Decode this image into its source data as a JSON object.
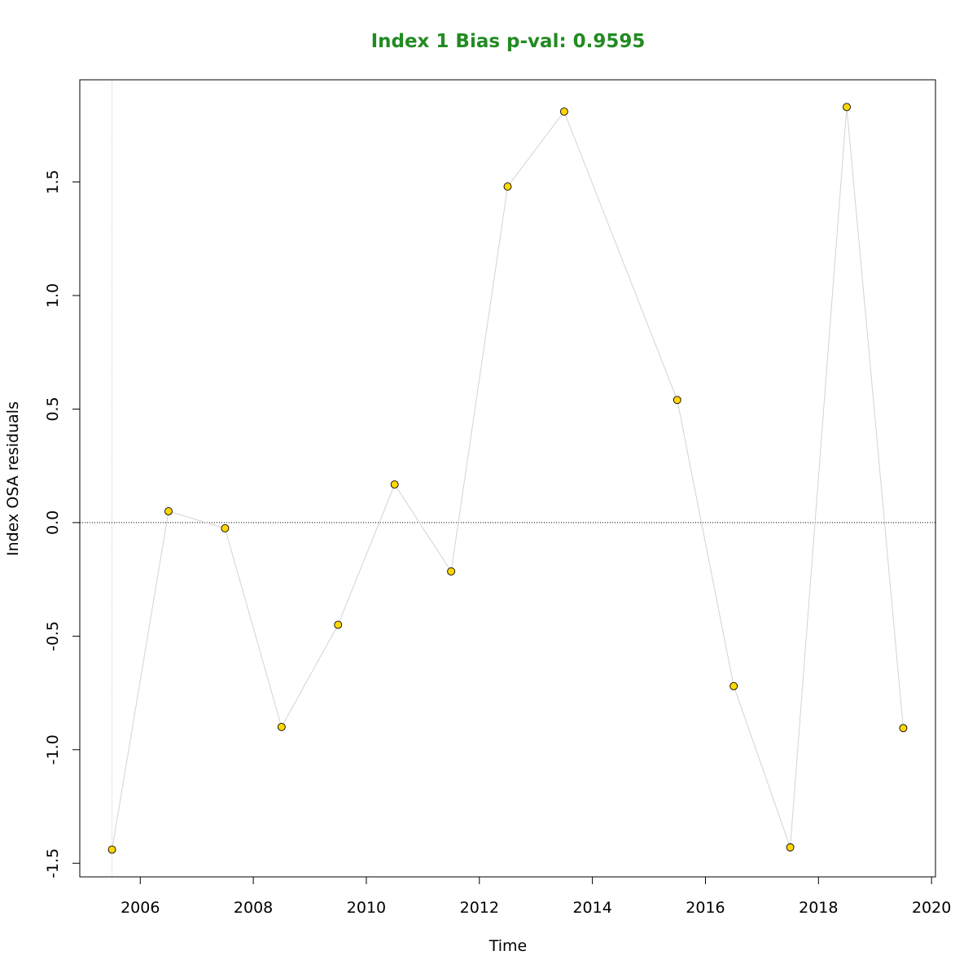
{
  "chart_data": {
    "type": "scatter",
    "title": "Index 1 Bias p-val: 0.9595",
    "title_color": "#228B22",
    "xlabel": "Time",
    "ylabel": "Index OSA residuals",
    "xlim": [
      2004.93,
      2020.07
    ],
    "ylim": [
      -1.56,
      1.95
    ],
    "x_ticks": [
      2006,
      2008,
      2010,
      2012,
      2014,
      2016,
      2018,
      2020
    ],
    "x_tick_labels": [
      "2006",
      "2008",
      "2010",
      "2012",
      "2014",
      "2016",
      "2018",
      "2020"
    ],
    "y_ticks": [
      -1.5,
      -1.0,
      -0.5,
      0.0,
      0.5,
      1.0,
      1.5
    ],
    "y_tick_labels": [
      "-1.5",
      "-1.0",
      "-0.5",
      "0.0",
      "0.5",
      "1.0",
      "1.5"
    ],
    "reference_line_y": 0,
    "reference_line_x": 2005.5,
    "point_color": "#FFD700",
    "line_color": "#D3D3D3",
    "segments": [
      [
        {
          "x": 2005.5,
          "y": -1.44
        },
        {
          "x": 2006.5,
          "y": 0.05
        },
        {
          "x": 2007.5,
          "y": -0.025
        },
        {
          "x": 2008.5,
          "y": -0.9
        },
        {
          "x": 2009.5,
          "y": -0.45
        },
        {
          "x": 2010.5,
          "y": 0.168
        },
        {
          "x": 2011.5,
          "y": -0.215
        },
        {
          "x": 2012.5,
          "y": 1.48
        },
        {
          "x": 2013.5,
          "y": 1.81
        }
      ],
      [
        {
          "x": 2015.5,
          "y": 0.54
        },
        {
          "x": 2016.5,
          "y": -0.72
        },
        {
          "x": 2017.5,
          "y": -1.43
        },
        {
          "x": 2018.5,
          "y": 1.83
        },
        {
          "x": 2019.5,
          "y": -0.905
        }
      ]
    ],
    "connect_gap": true
  }
}
